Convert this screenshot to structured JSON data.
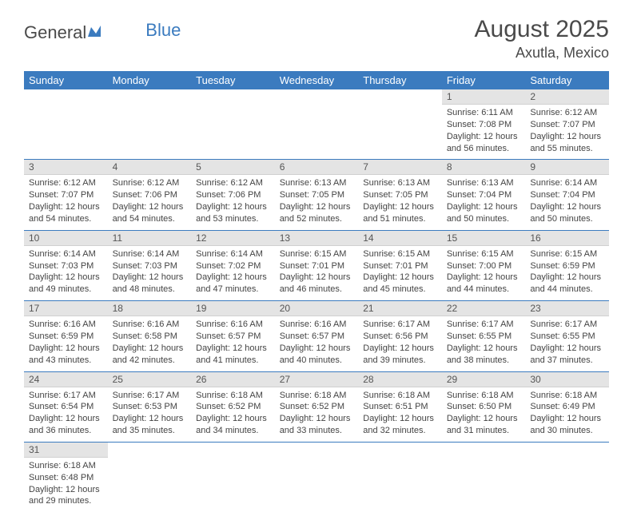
{
  "logo": {
    "text1": "General",
    "text2": "Blue"
  },
  "title": "August 2025",
  "location": "Axutla, Mexico",
  "colors": {
    "header_bg": "#3b7bbf",
    "header_text": "#ffffff",
    "daynum_bg": "#e4e4e4",
    "row_border": "#3b7bbf",
    "body_text": "#444444"
  },
  "daynames": [
    "Sunday",
    "Monday",
    "Tuesday",
    "Wednesday",
    "Thursday",
    "Friday",
    "Saturday"
  ],
  "weeks": [
    [
      {
        "n": "",
        "sr": "",
        "ss": "",
        "dl": ""
      },
      {
        "n": "",
        "sr": "",
        "ss": "",
        "dl": ""
      },
      {
        "n": "",
        "sr": "",
        "ss": "",
        "dl": ""
      },
      {
        "n": "",
        "sr": "",
        "ss": "",
        "dl": ""
      },
      {
        "n": "",
        "sr": "",
        "ss": "",
        "dl": ""
      },
      {
        "n": "1",
        "sr": "Sunrise: 6:11 AM",
        "ss": "Sunset: 7:08 PM",
        "dl": "Daylight: 12 hours and 56 minutes."
      },
      {
        "n": "2",
        "sr": "Sunrise: 6:12 AM",
        "ss": "Sunset: 7:07 PM",
        "dl": "Daylight: 12 hours and 55 minutes."
      }
    ],
    [
      {
        "n": "3",
        "sr": "Sunrise: 6:12 AM",
        "ss": "Sunset: 7:07 PM",
        "dl": "Daylight: 12 hours and 54 minutes."
      },
      {
        "n": "4",
        "sr": "Sunrise: 6:12 AM",
        "ss": "Sunset: 7:06 PM",
        "dl": "Daylight: 12 hours and 54 minutes."
      },
      {
        "n": "5",
        "sr": "Sunrise: 6:12 AM",
        "ss": "Sunset: 7:06 PM",
        "dl": "Daylight: 12 hours and 53 minutes."
      },
      {
        "n": "6",
        "sr": "Sunrise: 6:13 AM",
        "ss": "Sunset: 7:05 PM",
        "dl": "Daylight: 12 hours and 52 minutes."
      },
      {
        "n": "7",
        "sr": "Sunrise: 6:13 AM",
        "ss": "Sunset: 7:05 PM",
        "dl": "Daylight: 12 hours and 51 minutes."
      },
      {
        "n": "8",
        "sr": "Sunrise: 6:13 AM",
        "ss": "Sunset: 7:04 PM",
        "dl": "Daylight: 12 hours and 50 minutes."
      },
      {
        "n": "9",
        "sr": "Sunrise: 6:14 AM",
        "ss": "Sunset: 7:04 PM",
        "dl": "Daylight: 12 hours and 50 minutes."
      }
    ],
    [
      {
        "n": "10",
        "sr": "Sunrise: 6:14 AM",
        "ss": "Sunset: 7:03 PM",
        "dl": "Daylight: 12 hours and 49 minutes."
      },
      {
        "n": "11",
        "sr": "Sunrise: 6:14 AM",
        "ss": "Sunset: 7:03 PM",
        "dl": "Daylight: 12 hours and 48 minutes."
      },
      {
        "n": "12",
        "sr": "Sunrise: 6:14 AM",
        "ss": "Sunset: 7:02 PM",
        "dl": "Daylight: 12 hours and 47 minutes."
      },
      {
        "n": "13",
        "sr": "Sunrise: 6:15 AM",
        "ss": "Sunset: 7:01 PM",
        "dl": "Daylight: 12 hours and 46 minutes."
      },
      {
        "n": "14",
        "sr": "Sunrise: 6:15 AM",
        "ss": "Sunset: 7:01 PM",
        "dl": "Daylight: 12 hours and 45 minutes."
      },
      {
        "n": "15",
        "sr": "Sunrise: 6:15 AM",
        "ss": "Sunset: 7:00 PM",
        "dl": "Daylight: 12 hours and 44 minutes."
      },
      {
        "n": "16",
        "sr": "Sunrise: 6:15 AM",
        "ss": "Sunset: 6:59 PM",
        "dl": "Daylight: 12 hours and 44 minutes."
      }
    ],
    [
      {
        "n": "17",
        "sr": "Sunrise: 6:16 AM",
        "ss": "Sunset: 6:59 PM",
        "dl": "Daylight: 12 hours and 43 minutes."
      },
      {
        "n": "18",
        "sr": "Sunrise: 6:16 AM",
        "ss": "Sunset: 6:58 PM",
        "dl": "Daylight: 12 hours and 42 minutes."
      },
      {
        "n": "19",
        "sr": "Sunrise: 6:16 AM",
        "ss": "Sunset: 6:57 PM",
        "dl": "Daylight: 12 hours and 41 minutes."
      },
      {
        "n": "20",
        "sr": "Sunrise: 6:16 AM",
        "ss": "Sunset: 6:57 PM",
        "dl": "Daylight: 12 hours and 40 minutes."
      },
      {
        "n": "21",
        "sr": "Sunrise: 6:17 AM",
        "ss": "Sunset: 6:56 PM",
        "dl": "Daylight: 12 hours and 39 minutes."
      },
      {
        "n": "22",
        "sr": "Sunrise: 6:17 AM",
        "ss": "Sunset: 6:55 PM",
        "dl": "Daylight: 12 hours and 38 minutes."
      },
      {
        "n": "23",
        "sr": "Sunrise: 6:17 AM",
        "ss": "Sunset: 6:55 PM",
        "dl": "Daylight: 12 hours and 37 minutes."
      }
    ],
    [
      {
        "n": "24",
        "sr": "Sunrise: 6:17 AM",
        "ss": "Sunset: 6:54 PM",
        "dl": "Daylight: 12 hours and 36 minutes."
      },
      {
        "n": "25",
        "sr": "Sunrise: 6:17 AM",
        "ss": "Sunset: 6:53 PM",
        "dl": "Daylight: 12 hours and 35 minutes."
      },
      {
        "n": "26",
        "sr": "Sunrise: 6:18 AM",
        "ss": "Sunset: 6:52 PM",
        "dl": "Daylight: 12 hours and 34 minutes."
      },
      {
        "n": "27",
        "sr": "Sunrise: 6:18 AM",
        "ss": "Sunset: 6:52 PM",
        "dl": "Daylight: 12 hours and 33 minutes."
      },
      {
        "n": "28",
        "sr": "Sunrise: 6:18 AM",
        "ss": "Sunset: 6:51 PM",
        "dl": "Daylight: 12 hours and 32 minutes."
      },
      {
        "n": "29",
        "sr": "Sunrise: 6:18 AM",
        "ss": "Sunset: 6:50 PM",
        "dl": "Daylight: 12 hours and 31 minutes."
      },
      {
        "n": "30",
        "sr": "Sunrise: 6:18 AM",
        "ss": "Sunset: 6:49 PM",
        "dl": "Daylight: 12 hours and 30 minutes."
      }
    ],
    [
      {
        "n": "31",
        "sr": "Sunrise: 6:18 AM",
        "ss": "Sunset: 6:48 PM",
        "dl": "Daylight: 12 hours and 29 minutes."
      },
      {
        "n": "",
        "sr": "",
        "ss": "",
        "dl": ""
      },
      {
        "n": "",
        "sr": "",
        "ss": "",
        "dl": ""
      },
      {
        "n": "",
        "sr": "",
        "ss": "",
        "dl": ""
      },
      {
        "n": "",
        "sr": "",
        "ss": "",
        "dl": ""
      },
      {
        "n": "",
        "sr": "",
        "ss": "",
        "dl": ""
      },
      {
        "n": "",
        "sr": "",
        "ss": "",
        "dl": ""
      }
    ]
  ]
}
